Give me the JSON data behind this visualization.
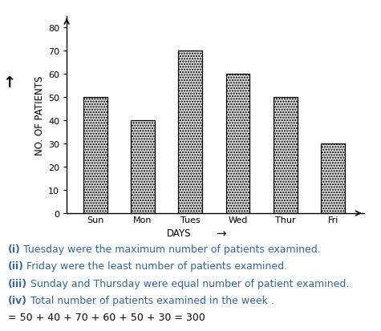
{
  "categories": [
    "Sun",
    "Mon",
    "Tues",
    "Wed",
    "Thur",
    "Fri"
  ],
  "values": [
    50,
    40,
    70,
    60,
    50,
    30
  ],
  "bar_color": "#d8d8d8",
  "bar_edgecolor": "#000000",
  "bar_hatch": ".....",
  "ylabel": "NO. OF PATIENTS",
  "xlabel": "DAYS",
  "ylim": [
    0,
    85
  ],
  "yticks": [
    0,
    10,
    20,
    30,
    40,
    50,
    60,
    70,
    80
  ],
  "background_color": "#ffffff",
  "text_color_blue": "#3465a8",
  "text_color_black": "#000000",
  "font_size_axis_label": 8.5,
  "font_size_tick": 8,
  "font_size_annotation": 9
}
